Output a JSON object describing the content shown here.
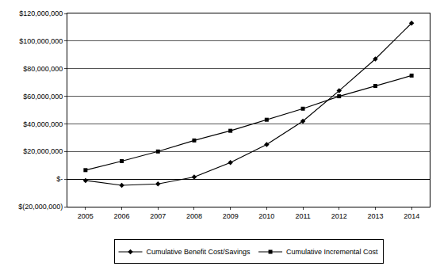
{
  "chart_data": {
    "type": "line",
    "categories": [
      "2005",
      "2006",
      "2007",
      "2008",
      "2009",
      "2010",
      "2011",
      "2012",
      "2013",
      "2014"
    ],
    "series": [
      {
        "name": "Cumulative Benefit Cost/Savings",
        "color": "#000000",
        "marker": "diamond",
        "values": [
          -1000000,
          -4500000,
          -3500000,
          1500000,
          12000000,
          25000000,
          42000000,
          64000000,
          87000000,
          113000000
        ]
      },
      {
        "name": "Cumulative Incremental Cost",
        "color": "#000000",
        "marker": "square",
        "values": [
          6500000,
          13000000,
          20000000,
          28000000,
          35000000,
          43000000,
          51000000,
          60000000,
          67500000,
          75000000
        ]
      }
    ],
    "ylim": [
      -20000000,
      120000000
    ],
    "yticks": [
      {
        "value": -20000000,
        "label": "$(20,000,000)"
      },
      {
        "value": 0,
        "label": "$-"
      },
      {
        "value": 20000000,
        "label": "$20,000,000"
      },
      {
        "value": 40000000,
        "label": "$40,000,000"
      },
      {
        "value": 60000000,
        "label": "$60,000,000"
      },
      {
        "value": 80000000,
        "label": "$80,000,000"
      },
      {
        "value": 100000000,
        "label": "$100,000,000"
      },
      {
        "value": 120000000,
        "label": "$120,000,000"
      }
    ],
    "grid": true,
    "legend": "bottom"
  }
}
